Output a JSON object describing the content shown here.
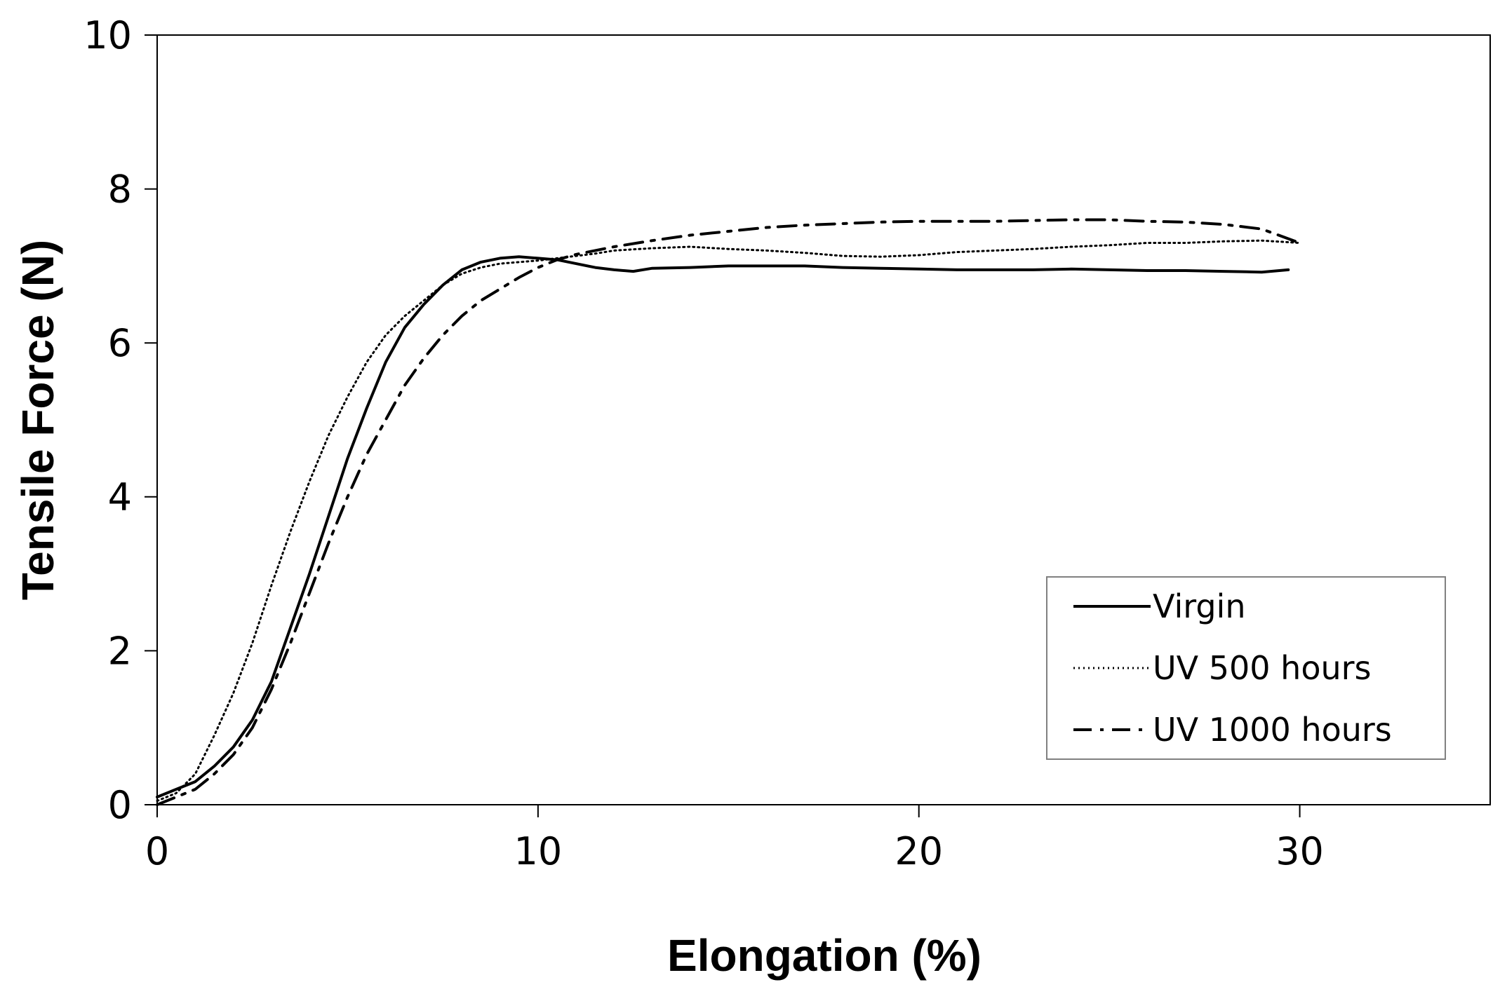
{
  "chart_data": {
    "type": "line",
    "title": "",
    "xlabel": "Elongation (%)",
    "ylabel": "Tensile Force (N)",
    "xlim": [
      0,
      35
    ],
    "ylim": [
      0,
      10
    ],
    "xticks": [
      0,
      10,
      20,
      30
    ],
    "yticks": [
      0,
      2,
      4,
      6,
      8,
      10
    ],
    "grid": false,
    "legend_position": "bottom-right",
    "series": [
      {
        "name": "Virgin",
        "style": "solid",
        "color": "#000000",
        "x": [
          0,
          0.5,
          1,
          1.5,
          2,
          2.5,
          3,
          3.5,
          4,
          4.5,
          5,
          5.5,
          6,
          6.5,
          7,
          7.5,
          8,
          8.5,
          9,
          9.5,
          10,
          10.5,
          11,
          11.5,
          12,
          12.5,
          13,
          14,
          15,
          16,
          17,
          18,
          19,
          20,
          21,
          22,
          23,
          24,
          25,
          26,
          27,
          28,
          29,
          29.7
        ],
        "y": [
          0.1,
          0.2,
          0.3,
          0.5,
          0.75,
          1.1,
          1.6,
          2.3,
          3.0,
          3.75,
          4.5,
          5.15,
          5.75,
          6.2,
          6.5,
          6.75,
          6.95,
          7.05,
          7.1,
          7.12,
          7.1,
          7.08,
          7.03,
          6.98,
          6.95,
          6.93,
          6.97,
          6.98,
          7.0,
          7.0,
          7.0,
          6.98,
          6.97,
          6.96,
          6.95,
          6.95,
          6.95,
          6.96,
          6.95,
          6.94,
          6.94,
          6.93,
          6.92,
          6.95
        ]
      },
      {
        "name": "UV 500 hours",
        "style": "dotted",
        "color": "#000000",
        "x": [
          0,
          0.5,
          1,
          1.5,
          2,
          2.5,
          3,
          3.5,
          4,
          4.5,
          5,
          5.5,
          6,
          6.5,
          7,
          7.5,
          8,
          8.5,
          9,
          9.5,
          10,
          10.5,
          11,
          11.5,
          12,
          13,
          14,
          15,
          16,
          17,
          18,
          19,
          20,
          21,
          22,
          23,
          24,
          25,
          26,
          27,
          28,
          29,
          30
        ],
        "y": [
          0.05,
          0.15,
          0.4,
          0.9,
          1.45,
          2.1,
          2.85,
          3.55,
          4.2,
          4.8,
          5.3,
          5.75,
          6.1,
          6.35,
          6.55,
          6.75,
          6.9,
          6.98,
          7.03,
          7.05,
          7.07,
          7.1,
          7.13,
          7.16,
          7.2,
          7.23,
          7.25,
          7.22,
          7.2,
          7.17,
          7.13,
          7.12,
          7.14,
          7.18,
          7.2,
          7.22,
          7.25,
          7.27,
          7.3,
          7.3,
          7.32,
          7.33,
          7.3
        ]
      },
      {
        "name": "UV 1000 hours",
        "style": "dashdot",
        "color": "#000000",
        "x": [
          0,
          0.5,
          1,
          1.5,
          2,
          2.5,
          3,
          3.5,
          4,
          4.5,
          5,
          5.5,
          6,
          6.5,
          7,
          7.5,
          8,
          8.5,
          9,
          9.5,
          10,
          10.5,
          11,
          11.5,
          12,
          13,
          14,
          15,
          16,
          17,
          18,
          19,
          20,
          21,
          22,
          23,
          24,
          25,
          26,
          27,
          28,
          29,
          30
        ],
        "y": [
          0.0,
          0.1,
          0.2,
          0.4,
          0.65,
          1.0,
          1.5,
          2.1,
          2.75,
          3.4,
          4.0,
          4.55,
          5.0,
          5.45,
          5.8,
          6.1,
          6.35,
          6.55,
          6.7,
          6.85,
          6.98,
          7.08,
          7.15,
          7.2,
          7.25,
          7.33,
          7.4,
          7.45,
          7.5,
          7.53,
          7.55,
          7.57,
          7.58,
          7.58,
          7.58,
          7.59,
          7.6,
          7.6,
          7.58,
          7.57,
          7.54,
          7.48,
          7.3
        ]
      }
    ]
  }
}
